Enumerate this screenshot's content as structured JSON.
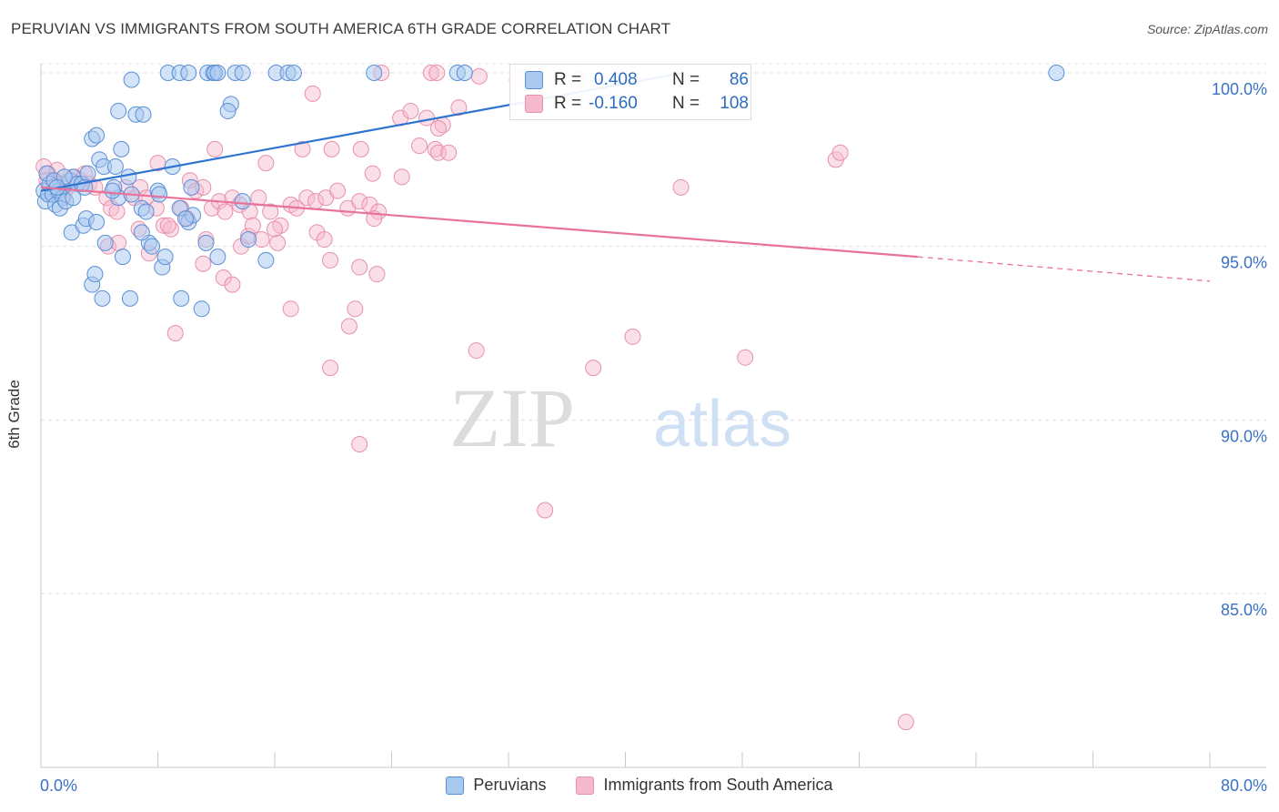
{
  "title": "PERUVIAN VS IMMIGRANTS FROM SOUTH AMERICA 6TH GRADE CORRELATION CHART",
  "source": "Source: ZipAtlas.com",
  "watermark": {
    "zip": "ZIP",
    "atlas": "atlas"
  },
  "stats": {
    "blue": {
      "r_label": "R =",
      "r_value": "0.408",
      "n_label": "N =",
      "n_value": "86"
    },
    "pink": {
      "r_label": "R =",
      "r_value": "-0.160",
      "n_label": "N =",
      "n_value": "108"
    }
  },
  "legend": {
    "peruvians": "Peruvians",
    "immigrants": "Immigrants from South America"
  },
  "colors": {
    "blue_fill": "#a8c8f0",
    "blue_stroke": "#5a8fd6",
    "blue_line": "#2f74d0",
    "pink_fill": "#f6b8cc",
    "pink_stroke": "#e890ac",
    "pink_line": "#e8729a",
    "axis_text": "#3a72c4"
  },
  "chart_data": {
    "type": "scatter",
    "title": "PERUVIAN VS IMMIGRANTS FROM SOUTH AMERICA 6TH GRADE CORRELATION CHART",
    "xlabel": "",
    "ylabel": "6th Grade",
    "xlim": [
      0,
      80
    ],
    "ylim": [
      80.5,
      101
    ],
    "x_tick_labels": [
      "0.0%",
      "80.0%"
    ],
    "y_ticks": [
      85,
      90,
      95,
      100
    ],
    "y_tick_labels": [
      "85.0%",
      "90.0%",
      "95.0%",
      "100.0%"
    ],
    "grid": true,
    "series": [
      {
        "name": "Peruvians",
        "r": 0.408,
        "n": 86,
        "trend": {
          "x": [
            0,
            44
          ],
          "y": [
            96.6,
            100.0
          ]
        },
        "points": [
          [
            0.2,
            96.6
          ],
          [
            0.3,
            96.3
          ],
          [
            0.5,
            96.5
          ],
          [
            0.6,
            96.8
          ],
          [
            0.8,
            96.5
          ],
          [
            1.0,
            96.2
          ],
          [
            1.2,
            96.6
          ],
          [
            1.5,
            96.4
          ],
          [
            0.4,
            97.1
          ],
          [
            0.9,
            96.9
          ],
          [
            1.3,
            96.1
          ],
          [
            1.7,
            96.3
          ],
          [
            2.0,
            96.9
          ],
          [
            2.2,
            97.0
          ],
          [
            2.5,
            96.8
          ],
          [
            2.8,
            96.8
          ],
          [
            3.2,
            97.1
          ],
          [
            2.1,
            95.4
          ],
          [
            2.9,
            95.6
          ],
          [
            3.1,
            95.8
          ],
          [
            4.0,
            97.5
          ],
          [
            3.5,
            98.1
          ],
          [
            3.8,
            98.2
          ],
          [
            4.3,
            97.3
          ],
          [
            5.1,
            97.3
          ],
          [
            5.5,
            97.8
          ],
          [
            6.5,
            98.8
          ],
          [
            7.0,
            98.8
          ],
          [
            5.3,
            96.4
          ],
          [
            5.0,
            96.7
          ],
          [
            6.0,
            97.0
          ],
          [
            6.2,
            96.5
          ],
          [
            6.9,
            96.1
          ],
          [
            7.2,
            96.0
          ],
          [
            8.0,
            96.6
          ],
          [
            8.1,
            96.5
          ],
          [
            7.4,
            95.1
          ],
          [
            7.6,
            95.0
          ],
          [
            8.3,
            94.4
          ],
          [
            8.5,
            94.7
          ],
          [
            9.5,
            96.1
          ],
          [
            10.1,
            95.7
          ],
          [
            10.4,
            95.9
          ],
          [
            11.3,
            95.1
          ],
          [
            9.6,
            93.5
          ],
          [
            11.0,
            93.2
          ],
          [
            12.1,
            94.7
          ],
          [
            13.8,
            96.3
          ],
          [
            14.2,
            95.2
          ],
          [
            15.4,
            94.6
          ],
          [
            3.8,
            95.7
          ],
          [
            4.4,
            95.1
          ],
          [
            5.6,
            94.7
          ],
          [
            4.2,
            93.5
          ],
          [
            6.1,
            93.5
          ],
          [
            3.5,
            93.9
          ],
          [
            3.7,
            94.2
          ],
          [
            6.2,
            99.8
          ],
          [
            5.3,
            98.9
          ],
          [
            8.7,
            100.0
          ],
          [
            9.5,
            100.0
          ],
          [
            10.1,
            100.0
          ],
          [
            11.4,
            100.0
          ],
          [
            11.8,
            100.0
          ],
          [
            11.9,
            100.0
          ],
          [
            12.1,
            100.0
          ],
          [
            13.3,
            100.0
          ],
          [
            13.8,
            100.0
          ],
          [
            16.1,
            100.0
          ],
          [
            16.9,
            100.0
          ],
          [
            17.3,
            100.0
          ],
          [
            22.8,
            100.0
          ],
          [
            28.5,
            100.0
          ],
          [
            29.0,
            100.0
          ],
          [
            13.0,
            99.1
          ],
          [
            12.8,
            98.9
          ],
          [
            2.2,
            96.4
          ],
          [
            1.6,
            97.0
          ],
          [
            3.0,
            96.7
          ],
          [
            4.9,
            96.6
          ],
          [
            9.0,
            97.3
          ],
          [
            10.3,
            96.7
          ],
          [
            6.9,
            95.4
          ],
          [
            9.9,
            95.8
          ],
          [
            69.5,
            100.0
          ],
          [
            1.1,
            96.7
          ]
        ]
      },
      {
        "name": "Immigrants from South America",
        "r": -0.16,
        "n": 108,
        "trend": {
          "x": [
            0,
            60
          ],
          "y": [
            96.7,
            94.7
          ]
        },
        "trend_dashed": {
          "x": [
            60,
            80
          ],
          "y": [
            94.7,
            94.0
          ]
        },
        "points": [
          [
            0.2,
            97.3
          ],
          [
            0.5,
            97.1
          ],
          [
            0.8,
            96.9
          ],
          [
            1.1,
            97.2
          ],
          [
            1.4,
            96.8
          ],
          [
            1.8,
            96.7
          ],
          [
            2.3,
            97.0
          ],
          [
            2.7,
            96.9
          ],
          [
            3.0,
            97.1
          ],
          [
            3.3,
            96.8
          ],
          [
            3.7,
            96.7
          ],
          [
            4.5,
            96.4
          ],
          [
            4.8,
            96.1
          ],
          [
            5.2,
            96.0
          ],
          [
            5.8,
            96.7
          ],
          [
            6.4,
            96.4
          ],
          [
            6.8,
            96.7
          ],
          [
            7.2,
            96.4
          ],
          [
            7.9,
            96.1
          ],
          [
            8.4,
            95.6
          ],
          [
            8.9,
            95.5
          ],
          [
            9.6,
            96.1
          ],
          [
            10.2,
            96.9
          ],
          [
            10.6,
            96.6
          ],
          [
            11.1,
            96.7
          ],
          [
            11.7,
            96.1
          ],
          [
            12.2,
            96.3
          ],
          [
            12.6,
            96.0
          ],
          [
            13.1,
            96.4
          ],
          [
            13.6,
            96.2
          ],
          [
            14.3,
            96.0
          ],
          [
            14.9,
            96.4
          ],
          [
            15.7,
            96.0
          ],
          [
            16.4,
            95.6
          ],
          [
            17.1,
            96.2
          ],
          [
            17.5,
            96.1
          ],
          [
            18.2,
            96.4
          ],
          [
            18.8,
            96.3
          ],
          [
            19.5,
            96.4
          ],
          [
            20.3,
            96.6
          ],
          [
            21.0,
            96.1
          ],
          [
            21.8,
            96.3
          ],
          [
            22.5,
            96.2
          ],
          [
            23.1,
            96.0
          ],
          [
            8.0,
            97.4
          ],
          [
            11.9,
            97.8
          ],
          [
            15.4,
            97.4
          ],
          [
            17.9,
            97.8
          ],
          [
            19.9,
            97.8
          ],
          [
            21.9,
            97.8
          ],
          [
            22.7,
            97.1
          ],
          [
            24.7,
            97.0
          ],
          [
            25.9,
            97.9
          ],
          [
            27.0,
            97.8
          ],
          [
            27.2,
            97.7
          ],
          [
            27.9,
            97.7
          ],
          [
            24.6,
            98.7
          ],
          [
            25.3,
            98.9
          ],
          [
            26.4,
            98.7
          ],
          [
            27.5,
            98.5
          ],
          [
            27.2,
            98.4
          ],
          [
            28.6,
            99.0
          ],
          [
            18.6,
            99.4
          ],
          [
            23.3,
            100.0
          ],
          [
            26.7,
            100.0
          ],
          [
            27.1,
            100.0
          ],
          [
            30.0,
            99.9
          ],
          [
            32.6,
            99.8
          ],
          [
            36.8,
            99.8
          ],
          [
            4.6,
            95.0
          ],
          [
            5.3,
            95.1
          ],
          [
            6.7,
            95.5
          ],
          [
            7.4,
            94.8
          ],
          [
            8.7,
            95.6
          ],
          [
            10.0,
            95.8
          ],
          [
            11.3,
            95.2
          ],
          [
            11.1,
            94.5
          ],
          [
            12.5,
            94.1
          ],
          [
            13.1,
            93.9
          ],
          [
            13.7,
            95.0
          ],
          [
            14.2,
            95.3
          ],
          [
            14.5,
            95.6
          ],
          [
            15.1,
            95.2
          ],
          [
            16.0,
            95.5
          ],
          [
            16.2,
            95.1
          ],
          [
            18.9,
            95.4
          ],
          [
            19.4,
            95.2
          ],
          [
            19.8,
            94.6
          ],
          [
            21.8,
            94.4
          ],
          [
            21.5,
            93.2
          ],
          [
            21.1,
            92.7
          ],
          [
            22.8,
            95.8
          ],
          [
            23.0,
            94.2
          ],
          [
            17.1,
            93.2
          ],
          [
            9.2,
            92.5
          ],
          [
            19.8,
            91.5
          ],
          [
            29.8,
            92.0
          ],
          [
            37.8,
            91.5
          ],
          [
            40.5,
            92.4
          ],
          [
            48.2,
            91.8
          ],
          [
            21.8,
            89.3
          ],
          [
            34.5,
            87.4
          ],
          [
            43.8,
            96.7
          ],
          [
            54.4,
            97.5
          ],
          [
            54.7,
            97.7
          ],
          [
            59.2,
            81.3
          ],
          [
            0.4,
            96.9
          ],
          [
            1.6,
            96.5
          ]
        ]
      }
    ]
  }
}
